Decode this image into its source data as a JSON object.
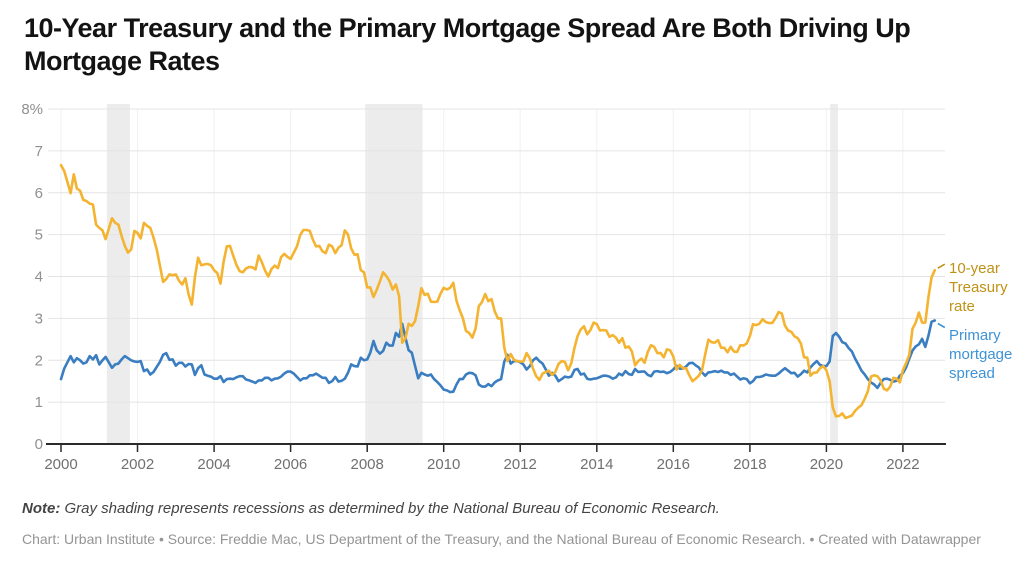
{
  "header": {
    "title": "10-Year Treasury and the Primary Mortgage Spread Are Both Driving Up Mortgage Rates"
  },
  "footer": {
    "note_label": "Note:",
    "note_text": "Gray shading represents recessions as determined by the National Bureau of Economic Research.",
    "attribution": "Chart: Urban Institute • Source: Freddie Mac, US Department of the Treasury, and the National Bureau of Economic Research. • Created with Datawrapper"
  },
  "colors": {
    "treasury_line": "#F4B330",
    "treasury_label": "#BF9215",
    "spread_line": "#3A7EC1",
    "spread_label": "#3E93D6",
    "recession_band": "#ECECEC",
    "gridline": "#E4E4E4",
    "vertical_gridline": "#F1F1F1",
    "axis": "#2A2A2A",
    "y_tick_text": "#909090",
    "x_tick_text": "#707070"
  },
  "chart_data": {
    "type": "line",
    "title": "10-Year Treasury and the Primary Mortgage Spread Are Both Driving Up Mortgage Rates",
    "xlabel": "",
    "ylabel": "",
    "ylim": [
      0,
      8
    ],
    "xlim": [
      2000,
      2023
    ],
    "grid": "horizontal-major plus faint vertical at ticks",
    "legend_position": "right-of-line-ends",
    "frequency": "monthly",
    "start": "2000-01",
    "end": "2022-11",
    "y_ticks": [
      0,
      1,
      2,
      3,
      4,
      5,
      6,
      7,
      8
    ],
    "y_tick_labels": [
      "0",
      "1",
      "2",
      "3",
      "4",
      "5",
      "6",
      "7",
      "8%"
    ],
    "x_ticks": [
      2000,
      2002,
      2004,
      2006,
      2008,
      2010,
      2012,
      2014,
      2016,
      2018,
      2020,
      2022
    ],
    "x_tick_labels": [
      "2000",
      "2002",
      "2004",
      "2006",
      "2008",
      "2010",
      "2012",
      "2014",
      "2016",
      "2018",
      "2020",
      "2022"
    ],
    "recessions": [
      [
        2001.2,
        2001.8
      ],
      [
        2007.95,
        2009.45
      ],
      [
        2020.1,
        2020.3
      ]
    ],
    "series": [
      {
        "name": "10-year Treasury rate",
        "color": "#F4B330",
        "label_color": "#BF9215",
        "values": [
          6.66,
          6.52,
          6.26,
          5.99,
          6.44,
          6.1,
          6.05,
          5.83,
          5.8,
          5.74,
          5.72,
          5.24,
          5.16,
          5.1,
          4.89,
          5.14,
          5.39,
          5.28,
          5.24,
          4.97,
          4.73,
          4.57,
          4.65,
          5.09,
          5.04,
          4.91,
          5.28,
          5.21,
          5.16,
          4.93,
          4.65,
          4.26,
          3.87,
          3.94,
          4.05,
          4.03,
          4.05,
          3.9,
          3.81,
          3.96,
          3.57,
          3.33,
          3.98,
          4.45,
          4.27,
          4.29,
          4.3,
          4.27,
          4.15,
          4.08,
          3.83,
          4.35,
          4.72,
          4.73,
          4.5,
          4.28,
          4.13,
          4.1,
          4.19,
          4.23,
          4.22,
          4.17,
          4.5,
          4.34,
          4.14,
          4.0,
          4.18,
          4.26,
          4.2,
          4.46,
          4.54,
          4.47,
          4.42,
          4.57,
          4.72,
          4.99,
          5.11,
          5.11,
          5.09,
          4.88,
          4.72,
          4.73,
          4.6,
          4.56,
          4.76,
          4.72,
          4.56,
          4.69,
          4.75,
          5.1,
          5.0,
          4.67,
          4.52,
          4.53,
          4.15,
          4.1,
          3.74,
          3.74,
          3.51,
          3.68,
          3.88,
          4.1,
          4.01,
          3.89,
          3.69,
          3.81,
          3.53,
          2.42,
          2.52,
          2.87,
          2.82,
          2.93,
          3.29,
          3.72,
          3.56,
          3.59,
          3.4,
          3.39,
          3.4,
          3.59,
          3.73,
          3.69,
          3.73,
          3.85,
          3.42,
          3.2,
          3.01,
          2.7,
          2.65,
          2.54,
          2.76,
          3.29,
          3.39,
          3.58,
          3.41,
          3.46,
          3.17,
          3.0,
          3.0,
          2.3,
          1.98,
          2.15,
          2.01,
          1.98,
          1.97,
          1.97,
          2.17,
          2.05,
          1.8,
          1.62,
          1.53,
          1.68,
          1.72,
          1.75,
          1.65,
          1.72,
          1.91,
          1.98,
          1.96,
          1.76,
          1.93,
          2.3,
          2.58,
          2.74,
          2.81,
          2.62,
          2.72,
          2.9,
          2.86,
          2.71,
          2.72,
          2.71,
          2.56,
          2.6,
          2.54,
          2.42,
          2.53,
          2.3,
          2.33,
          2.21,
          1.88,
          1.98,
          2.04,
          1.94,
          2.2,
          2.36,
          2.32,
          2.17,
          2.17,
          2.07,
          2.26,
          2.24,
          2.09,
          1.78,
          1.89,
          1.81,
          1.81,
          1.64,
          1.5,
          1.56,
          1.63,
          1.76,
          2.14,
          2.49,
          2.43,
          2.42,
          2.48,
          2.3,
          2.3,
          2.19,
          2.32,
          2.21,
          2.2,
          2.36,
          2.35,
          2.4,
          2.58,
          2.86,
          2.84,
          2.87,
          2.98,
          2.91,
          2.89,
          2.89,
          3.0,
          3.15,
          3.12,
          2.83,
          2.71,
          2.68,
          2.57,
          2.53,
          2.4,
          2.07,
          2.06,
          1.63,
          1.7,
          1.71,
          1.81,
          1.86,
          1.76,
          1.5,
          0.87,
          0.66,
          0.67,
          0.73,
          0.62,
          0.65,
          0.68,
          0.79,
          0.87,
          0.93,
          1.08,
          1.26,
          1.61,
          1.64,
          1.62,
          1.52,
          1.32,
          1.28,
          1.37,
          1.58,
          1.56,
          1.47,
          1.76,
          1.93,
          2.13,
          2.75,
          2.9,
          3.14,
          2.9,
          2.9,
          3.52,
          3.98,
          4.15
        ]
      },
      {
        "name": "Primary mortgage spread",
        "color": "#3A7EC1",
        "label_color": "#3E93D6",
        "values": [
          1.55,
          1.8,
          1.95,
          2.1,
          1.95,
          2.05,
          2.0,
          1.92,
          1.95,
          2.1,
          2.02,
          2.12,
          1.9,
          2.0,
          2.08,
          1.95,
          1.82,
          1.9,
          1.92,
          2.02,
          2.1,
          2.05,
          2.0,
          1.97,
          1.96,
          1.98,
          1.74,
          1.78,
          1.66,
          1.72,
          1.84,
          1.96,
          2.13,
          2.17,
          2.01,
          2.02,
          1.87,
          1.94,
          1.94,
          1.85,
          1.91,
          1.9,
          1.65,
          1.81,
          1.88,
          1.66,
          1.63,
          1.61,
          1.56,
          1.56,
          1.62,
          1.48,
          1.55,
          1.56,
          1.55,
          1.59,
          1.62,
          1.62,
          1.54,
          1.52,
          1.49,
          1.46,
          1.52,
          1.52,
          1.58,
          1.58,
          1.52,
          1.56,
          1.57,
          1.61,
          1.68,
          1.73,
          1.73,
          1.68,
          1.6,
          1.52,
          1.57,
          1.57,
          1.64,
          1.64,
          1.68,
          1.63,
          1.58,
          1.58,
          1.46,
          1.5,
          1.6,
          1.49,
          1.51,
          1.56,
          1.7,
          1.9,
          1.86,
          1.85,
          2.06,
          2.0,
          2.02,
          2.18,
          2.46,
          2.24,
          2.16,
          2.22,
          2.42,
          2.35,
          2.35,
          2.65,
          2.56,
          2.87,
          2.54,
          2.24,
          2.18,
          1.87,
          1.57,
          1.7,
          1.66,
          1.63,
          1.66,
          1.55,
          1.48,
          1.4,
          1.3,
          1.28,
          1.24,
          1.25,
          1.42,
          1.55,
          1.55,
          1.66,
          1.7,
          1.69,
          1.64,
          1.42,
          1.37,
          1.37,
          1.43,
          1.38,
          1.47,
          1.52,
          1.55,
          1.97,
          2.13,
          1.92,
          1.98,
          1.98,
          1.95,
          1.9,
          1.78,
          1.86,
          2.0,
          2.06,
          1.98,
          1.92,
          1.78,
          1.63,
          1.7,
          1.63,
          1.5,
          1.55,
          1.61,
          1.59,
          1.61,
          1.77,
          1.79,
          1.66,
          1.68,
          1.56,
          1.54,
          1.56,
          1.57,
          1.6,
          1.63,
          1.63,
          1.61,
          1.56,
          1.59,
          1.68,
          1.64,
          1.74,
          1.67,
          1.65,
          1.79,
          1.72,
          1.73,
          1.73,
          1.65,
          1.62,
          1.73,
          1.74,
          1.72,
          1.73,
          1.69,
          1.72,
          1.78,
          1.87,
          1.8,
          1.8,
          1.85,
          1.93,
          1.94,
          1.88,
          1.83,
          1.71,
          1.63,
          1.71,
          1.72,
          1.74,
          1.72,
          1.75,
          1.71,
          1.71,
          1.65,
          1.68,
          1.61,
          1.54,
          1.57,
          1.55,
          1.45,
          1.5,
          1.6,
          1.6,
          1.62,
          1.66,
          1.64,
          1.63,
          1.63,
          1.68,
          1.75,
          1.81,
          1.75,
          1.69,
          1.7,
          1.61,
          1.67,
          1.75,
          1.71,
          1.83,
          1.91,
          1.98,
          1.89,
          1.86,
          1.86,
          1.97,
          2.58,
          2.65,
          2.56,
          2.43,
          2.4,
          2.29,
          2.21,
          2.04,
          1.9,
          1.75,
          1.66,
          1.55,
          1.47,
          1.42,
          1.34,
          1.46,
          1.55,
          1.56,
          1.53,
          1.49,
          1.51,
          1.63,
          1.69,
          1.83,
          2.04,
          2.23,
          2.33,
          2.38,
          2.51,
          2.32,
          2.59,
          2.92,
          2.95
        ]
      }
    ]
  }
}
